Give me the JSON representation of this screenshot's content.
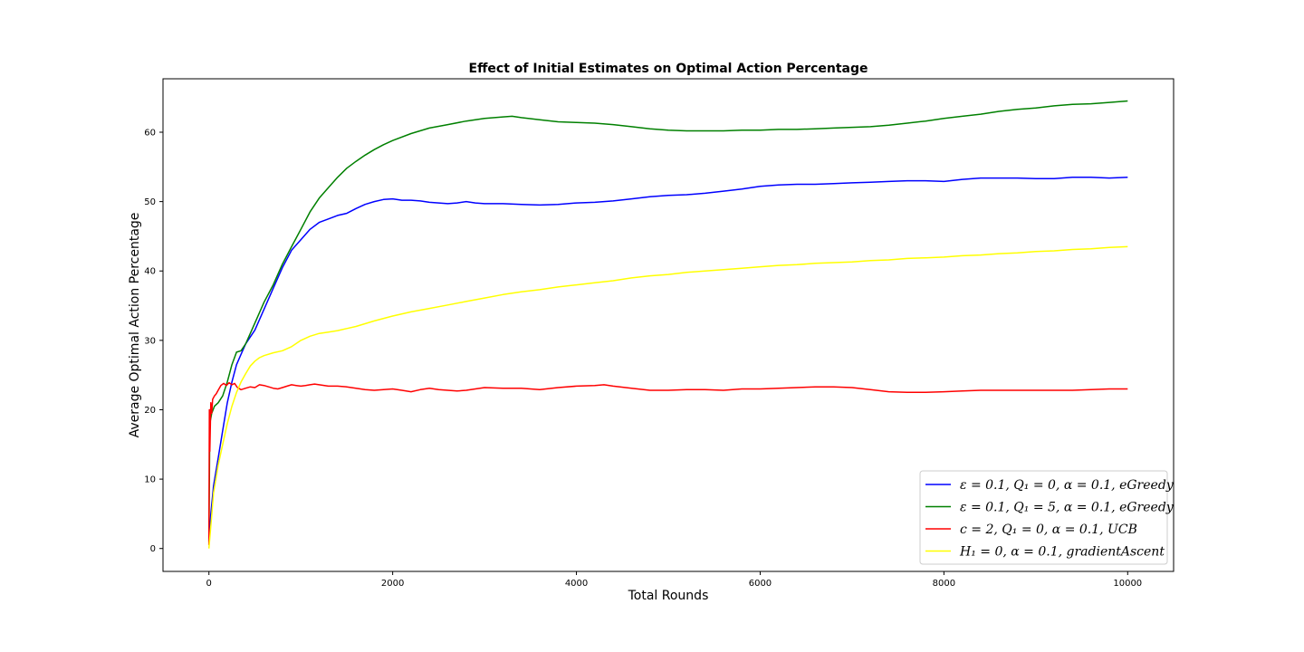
{
  "chart_data": {
    "type": "line",
    "title": "Effect of Initial Estimates on Optimal Action Percentage",
    "xlabel": "Total Rounds",
    "ylabel": "Average Optimal Action Percentage",
    "xlim": [
      -500,
      10500
    ],
    "ylim": [
      -3.3,
      67.7
    ],
    "xticks": [
      0,
      2000,
      4000,
      6000,
      8000,
      10000
    ],
    "yticks": [
      0,
      10,
      20,
      30,
      40,
      50,
      60
    ],
    "grid": false,
    "legend_position": "lower-right",
    "series": [
      {
        "name": "ε = 0.1, Q₁ = 0, α = 0.1, eGreedy",
        "color": "#0000ff",
        "x": [
          0,
          20,
          50,
          100,
          150,
          200,
          250,
          300,
          350,
          400,
          500,
          600,
          700,
          800,
          900,
          1000,
          1100,
          1200,
          1300,
          1400,
          1500,
          1600,
          1700,
          1800,
          1900,
          2000,
          2100,
          2200,
          2300,
          2400,
          2500,
          2600,
          2700,
          2800,
          2900,
          3000,
          3200,
          3400,
          3600,
          3800,
          4000,
          4200,
          4400,
          4600,
          4800,
          5000,
          5200,
          5400,
          5600,
          5800,
          6000,
          6200,
          6400,
          6600,
          6800,
          7000,
          7200,
          7400,
          7600,
          7800,
          8000,
          8200,
          8400,
          8600,
          8800,
          9000,
          9200,
          9400,
          9600,
          9800,
          10000
        ],
        "y": [
          1,
          5,
          9,
          13,
          17,
          21,
          24,
          26.5,
          28,
          29.5,
          31.5,
          34.5,
          37.5,
          40.5,
          43,
          44.5,
          46,
          47,
          47.5,
          48,
          48.3,
          49,
          49.6,
          50,
          50.3,
          50.4,
          50.2,
          50.2,
          50.1,
          49.9,
          49.8,
          49.7,
          49.8,
          50,
          49.8,
          49.7,
          49.7,
          49.6,
          49.5,
          49.6,
          49.8,
          49.9,
          50.1,
          50.4,
          50.7,
          50.9,
          51,
          51.2,
          51.5,
          51.8,
          52.2,
          52.4,
          52.5,
          52.5,
          52.6,
          52.7,
          52.8,
          52.9,
          53,
          53,
          52.9,
          53.2,
          53.4,
          53.4,
          53.4,
          53.3,
          53.3,
          53.5,
          53.5,
          53.4,
          53.5
        ]
      },
      {
        "name": "ε = 0.1, Q₁ = 5, α = 0.1, eGreedy",
        "color": "#008000",
        "x": [
          0,
          10,
          30,
          60,
          100,
          150,
          200,
          250,
          300,
          350,
          400,
          500,
          600,
          700,
          800,
          900,
          1000,
          1100,
          1200,
          1300,
          1400,
          1500,
          1600,
          1700,
          1800,
          1900,
          2000,
          2200,
          2400,
          2600,
          2800,
          3000,
          3200,
          3300,
          3400,
          3600,
          3800,
          4000,
          4200,
          4400,
          4600,
          4800,
          5000,
          5200,
          5400,
          5600,
          5800,
          6000,
          6200,
          6400,
          6600,
          6800,
          7000,
          7200,
          7400,
          7600,
          7800,
          8000,
          8200,
          8400,
          8600,
          8800,
          9000,
          9200,
          9400,
          9600,
          9800,
          10000
        ],
        "y": [
          1,
          18,
          19.5,
          20.5,
          21,
          22,
          24,
          26.5,
          28.3,
          28.5,
          29.5,
          32.5,
          35.5,
          38,
          41,
          43.5,
          46,
          48.5,
          50.5,
          52,
          53.5,
          54.8,
          55.8,
          56.7,
          57.5,
          58.2,
          58.8,
          59.8,
          60.6,
          61.1,
          61.6,
          62,
          62.2,
          62.3,
          62.1,
          61.8,
          61.5,
          61.4,
          61.3,
          61.1,
          60.8,
          60.5,
          60.3,
          60.2,
          60.2,
          60.2,
          60.3,
          60.3,
          60.4,
          60.4,
          60.5,
          60.6,
          60.7,
          60.8,
          61,
          61.3,
          61.6,
          62,
          62.3,
          62.6,
          63,
          63.3,
          63.5,
          63.8,
          64,
          64.1,
          64.3,
          64.5
        ]
      },
      {
        "name": "c = 2, Q₁ = 0, α = 0.1, UCB",
        "color": "#ff0000",
        "x": [
          0,
          5,
          10,
          20,
          30,
          40,
          60,
          80,
          100,
          130,
          160,
          190,
          220,
          250,
          280,
          310,
          350,
          400,
          450,
          500,
          550,
          600,
          650,
          700,
          750,
          800,
          850,
          900,
          950,
          1000,
          1050,
          1100,
          1150,
          1200,
          1300,
          1400,
          1500,
          1600,
          1700,
          1800,
          1900,
          2000,
          2100,
          2200,
          2300,
          2400,
          2500,
          2600,
          2700,
          2800,
          2900,
          3000,
          3200,
          3400,
          3600,
          3800,
          4000,
          4200,
          4300,
          4400,
          4600,
          4800,
          5000,
          5200,
          5400,
          5600,
          5800,
          6000,
          6200,
          6400,
          6600,
          6800,
          7000,
          7200,
          7400,
          7600,
          7800,
          8000,
          8200,
          8400,
          8600,
          8800,
          9000,
          9200,
          9400,
          9600,
          9800,
          10000
        ],
        "y": [
          0.5,
          20,
          14,
          21,
          19.5,
          21.5,
          22,
          22.3,
          22.8,
          23.5,
          23.8,
          23.5,
          23.9,
          23.6,
          23.8,
          23.2,
          22.9,
          23.1,
          23.3,
          23.2,
          23.6,
          23.5,
          23.3,
          23.1,
          23,
          23.2,
          23.4,
          23.6,
          23.5,
          23.4,
          23.5,
          23.6,
          23.7,
          23.6,
          23.4,
          23.4,
          23.3,
          23.1,
          22.9,
          22.8,
          22.9,
          23,
          22.8,
          22.6,
          22.9,
          23.1,
          22.9,
          22.8,
          22.7,
          22.8,
          23,
          23.2,
          23.1,
          23.1,
          22.9,
          23.2,
          23.4,
          23.5,
          23.6,
          23.4,
          23.1,
          22.8,
          22.8,
          22.9,
          22.9,
          22.8,
          23,
          23,
          23.1,
          23.2,
          23.3,
          23.3,
          23.2,
          22.9,
          22.6,
          22.5,
          22.5,
          22.6,
          22.7,
          22.8,
          22.8,
          22.8,
          22.8,
          22.8,
          22.8,
          22.9,
          23,
          23
        ]
      },
      {
        "name": "H₁ = 0, α = 0.1, gradientAscent",
        "color": "#ffff00",
        "x": [
          0,
          25,
          50,
          100,
          150,
          200,
          250,
          300,
          350,
          400,
          450,
          500,
          550,
          600,
          700,
          800,
          900,
          1000,
          1100,
          1200,
          1300,
          1400,
          1500,
          1600,
          1800,
          2000,
          2200,
          2400,
          2600,
          2800,
          3000,
          3200,
          3400,
          3600,
          3800,
          4000,
          4200,
          4400,
          4600,
          4800,
          5000,
          5200,
          5400,
          5600,
          5800,
          6000,
          6200,
          6400,
          6600,
          6800,
          7000,
          7200,
          7400,
          7600,
          7800,
          8000,
          8200,
          8400,
          8600,
          8800,
          9000,
          9200,
          9400,
          9600,
          9800,
          10000
        ],
        "y": [
          0,
          4,
          8,
          12,
          15,
          18,
          20.5,
          22.5,
          24,
          25.2,
          26.3,
          27,
          27.5,
          27.8,
          28.2,
          28.5,
          29.1,
          30,
          30.6,
          31,
          31.2,
          31.4,
          31.7,
          32,
          32.8,
          33.5,
          34.1,
          34.6,
          35.1,
          35.6,
          36.1,
          36.6,
          37,
          37.3,
          37.7,
          38,
          38.3,
          38.6,
          39,
          39.3,
          39.5,
          39.8,
          40,
          40.2,
          40.4,
          40.6,
          40.8,
          40.9,
          41.1,
          41.2,
          41.3,
          41.5,
          41.6,
          41.8,
          41.9,
          42,
          42.2,
          42.3,
          42.5,
          42.6,
          42.8,
          42.9,
          43.1,
          43.2,
          43.4,
          43.5
        ]
      }
    ]
  }
}
